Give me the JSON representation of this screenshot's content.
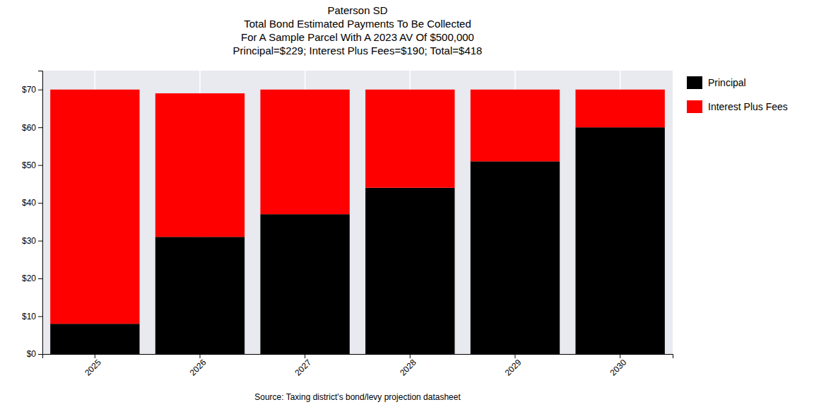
{
  "chart_data": {
    "type": "bar",
    "stacked": true,
    "title": "Paterson SD\nTotal Bond Estimated Payments To Be Collected\nFor A Sample Parcel With A 2023 AV Of $500,000\nPrincipal=$229; Interest Plus Fees=$190; Total=$418",
    "xlabel": "Source: Taxing district's bond/levy projection datasheet",
    "categories": [
      "2025",
      "2026",
      "2027",
      "2028",
      "2029",
      "2030"
    ],
    "series": [
      {
        "name": "Principal",
        "color": "#000000",
        "values": [
          8,
          31,
          37,
          44,
          51,
          60
        ]
      },
      {
        "name": "Interest Plus Fees",
        "color": "#ff0000",
        "values": [
          62,
          38,
          33,
          26,
          19,
          10
        ]
      }
    ],
    "ylim": [
      0,
      75
    ],
    "yticks": [
      {
        "value": 0,
        "label": "$0"
      },
      {
        "value": 10,
        "label": "$10"
      },
      {
        "value": 20,
        "label": "$20"
      },
      {
        "value": 30,
        "label": "$30"
      },
      {
        "value": 40,
        "label": "$40"
      },
      {
        "value": 50,
        "label": "$50"
      },
      {
        "value": 60,
        "label": "$60"
      },
      {
        "value": 70,
        "label": "$70"
      }
    ],
    "grid": true,
    "legend": "right"
  }
}
